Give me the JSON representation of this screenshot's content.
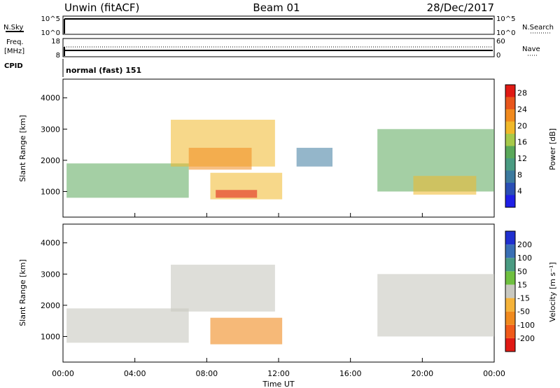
{
  "header": {
    "station": "Unwin (fitACF)",
    "beam": "Beam 01",
    "date": "28/Dec/2017"
  },
  "status_panels": {
    "nsky_label": "N.Sky",
    "nsearch_label": "N.Search",
    "freq_label_1": "Freq.",
    "freq_label_2": "[MHz]",
    "nave_label": "Nave",
    "cpid_label": "CPID",
    "cpid_value": "normal (fast) 151",
    "left_ticks_top": [
      "10^5",
      "10^0"
    ],
    "right_ticks_top": [
      "10^5",
      "10^0"
    ],
    "left_ticks_freq": [
      "18",
      "8"
    ],
    "right_ticks_nave": [
      "60",
      "0"
    ]
  },
  "colors": {
    "power": [
      "#1f1fe6",
      "#2a4fb5",
      "#3c7a9e",
      "#4a9b82",
      "#5aa85a",
      "#a7c94a",
      "#f0b82a",
      "#f08a1e",
      "#e8561c",
      "#e01a14"
    ],
    "velocity": [
      "#e01a14",
      "#f05a1a",
      "#f08a1e",
      "#f5b33a",
      "#c8c8c0",
      "#6fc040",
      "#4a9b82",
      "#3a6fb5",
      "#2030d0"
    ]
  },
  "chart_data": [
    {
      "type": "heatmap",
      "name": "power",
      "x_unit": "hours UT",
      "xlim": [
        0,
        24
      ],
      "ylim": [
        180,
        4600
      ],
      "ylabel": "Slant Range [km]",
      "yticks": [
        1000,
        2000,
        3000,
        4000
      ],
      "colorbar_label": "Power [dB]",
      "colorbar_ticks": [
        4,
        8,
        12,
        16,
        20,
        24,
        28
      ],
      "colorbar_range": [
        0,
        30
      ],
      "regions": [
        {
          "x": [
            0.2,
            7.0
          ],
          "y": [
            800,
            1900
          ],
          "level": 12
        },
        {
          "x": [
            6.0,
            11.8
          ],
          "y": [
            1800,
            3300
          ],
          "level": 18
        },
        {
          "x": [
            7.0,
            10.5
          ],
          "y": [
            1700,
            2400
          ],
          "level": 22
        },
        {
          "x": [
            8.2,
            12.2
          ],
          "y": [
            750,
            1600
          ],
          "level": 20
        },
        {
          "x": [
            8.5,
            10.8
          ],
          "y": [
            800,
            1050
          ],
          "level": 27
        },
        {
          "x": [
            13.0,
            15.0
          ],
          "y": [
            1800,
            2400
          ],
          "level": 8
        },
        {
          "x": [
            17.5,
            24.0
          ],
          "y": [
            1000,
            3000
          ],
          "level": 12
        },
        {
          "x": [
            19.5,
            23.0
          ],
          "y": [
            900,
            1500
          ],
          "level": 18
        }
      ]
    },
    {
      "type": "heatmap",
      "name": "velocity",
      "x_unit": "hours UT",
      "xlim": [
        0,
        24
      ],
      "ylim": [
        180,
        4600
      ],
      "ylabel": "Slant Range [km]",
      "yticks": [
        1000,
        2000,
        3000,
        4000
      ],
      "xticks": [
        "00:00",
        "04:00",
        "08:00",
        "12:00",
        "16:00",
        "20:00",
        "00:00"
      ],
      "xlabel": "Time UT",
      "colorbar_label": "Velocity [m s⁻¹]",
      "colorbar_ticks": [
        "-200",
        "-100",
        "-50",
        "-15",
        "15",
        "50",
        "100",
        "200"
      ],
      "regions": [
        {
          "x": [
            0.2,
            7.0
          ],
          "y": [
            800,
            1900
          ],
          "level": 0
        },
        {
          "x": [
            6.0,
            11.8
          ],
          "y": [
            1800,
            3300
          ],
          "level": 0
        },
        {
          "x": [
            8.2,
            12.2
          ],
          "y": [
            750,
            1600
          ],
          "level": -60
        },
        {
          "x": [
            17.5,
            24.0
          ],
          "y": [
            1000,
            3000
          ],
          "level": 0
        }
      ]
    }
  ]
}
